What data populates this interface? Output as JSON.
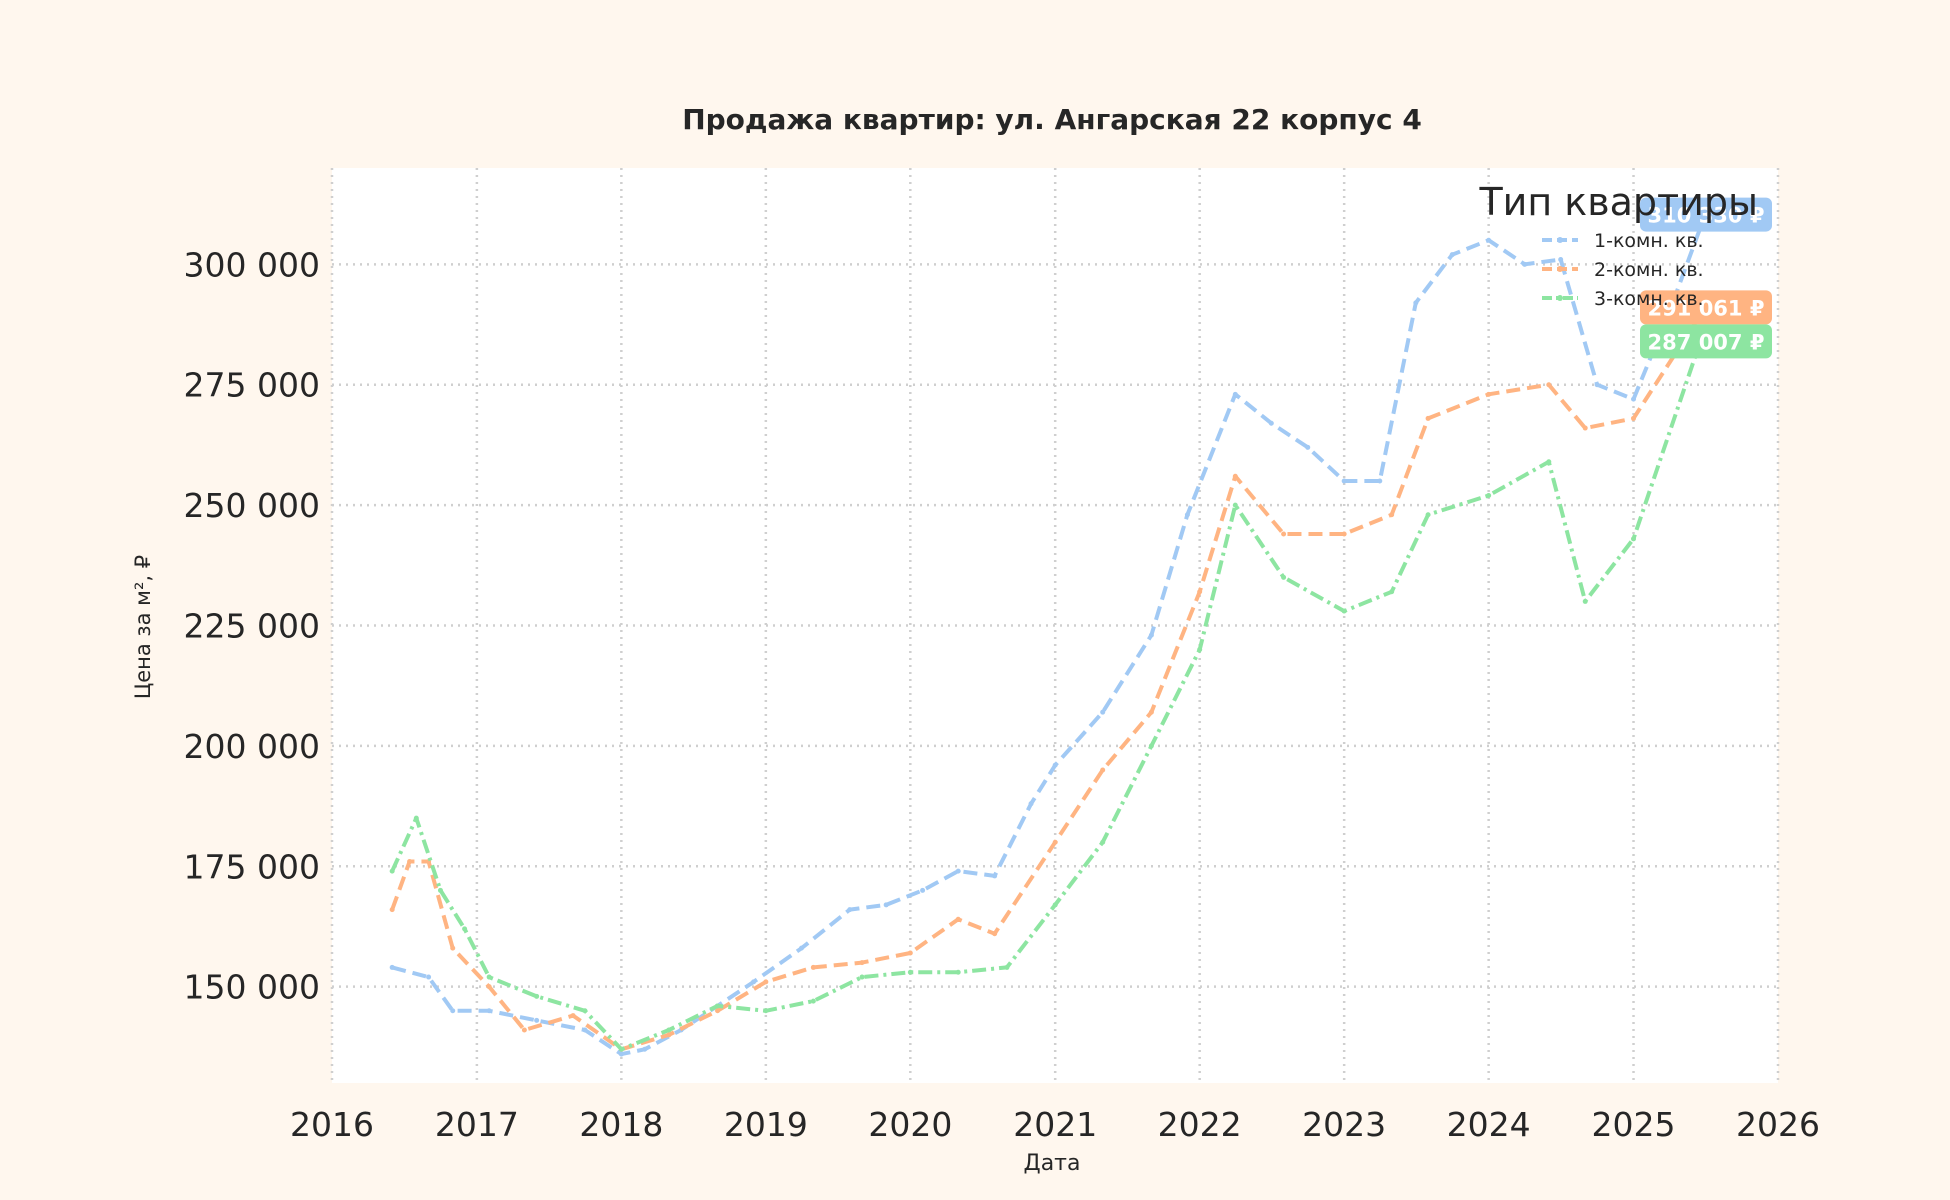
{
  "chart_data": {
    "type": "line",
    "title": "Продажа квартир: ул. Ангарская 22 корпус 4",
    "xlabel": "Дата",
    "ylabel": "Цена за м², ₽",
    "xlim": [
      "2016-01-01",
      "2026-01-01"
    ],
    "ylim": [
      130000,
      320000
    ],
    "x_ticks": [
      "2016",
      "2017",
      "2018",
      "2019",
      "2020",
      "2021",
      "2022",
      "2023",
      "2024",
      "2025",
      "2026"
    ],
    "y_ticks": [
      150000,
      175000,
      200000,
      225000,
      250000,
      275000,
      300000
    ],
    "y_tick_labels": [
      "150 000",
      "175 000",
      "200 000",
      "225 000",
      "250 000",
      "275 000",
      "300 000"
    ],
    "grid": true,
    "legend": {
      "title": "Тип квартиры",
      "placement": "top-right"
    },
    "series": [
      {
        "name": "1-комн. кв.",
        "color": "#a1c9f4",
        "end_label": "310 330 ₽",
        "points": [
          [
            "2016-06-01",
            154000
          ],
          [
            "2016-09-01",
            152000
          ],
          [
            "2016-11-01",
            145000
          ],
          [
            "2017-02-01",
            145000
          ],
          [
            "2017-06-01",
            143000
          ],
          [
            "2017-10-01",
            141000
          ],
          [
            "2018-01-01",
            136000
          ],
          [
            "2018-03-01",
            137000
          ],
          [
            "2018-06-01",
            141000
          ],
          [
            "2018-09-01",
            146000
          ],
          [
            "2018-12-01",
            151000
          ],
          [
            "2019-04-01",
            158000
          ],
          [
            "2019-08-01",
            166000
          ],
          [
            "2019-11-01",
            167000
          ],
          [
            "2020-02-01",
            170000
          ],
          [
            "2020-05-01",
            174000
          ],
          [
            "2020-08-01",
            173000
          ],
          [
            "2020-11-01",
            188000
          ],
          [
            "2021-01-01",
            196000
          ],
          [
            "2021-05-01",
            207000
          ],
          [
            "2021-09-01",
            223000
          ],
          [
            "2021-12-01",
            248000
          ],
          [
            "2022-04-01",
            273000
          ],
          [
            "2022-07-01",
            267000
          ],
          [
            "2022-10-01",
            262000
          ],
          [
            "2023-01-01",
            255000
          ],
          [
            "2023-04-01",
            255000
          ],
          [
            "2023-07-01",
            292000
          ],
          [
            "2023-10-01",
            302000
          ],
          [
            "2024-01-01",
            305000
          ],
          [
            "2024-04-01",
            300000
          ],
          [
            "2024-07-01",
            301000
          ],
          [
            "2024-10-01",
            275000
          ],
          [
            "2025-01-01",
            272000
          ],
          [
            "2025-04-01",
            290000
          ],
          [
            "2025-07-01",
            310330
          ]
        ]
      },
      {
        "name": "2-комн. кв.",
        "color": "#ffb482",
        "end_label": "291 061 ₽",
        "points": [
          [
            "2016-06-01",
            166000
          ],
          [
            "2016-07-15",
            176000
          ],
          [
            "2016-09-01",
            176000
          ],
          [
            "2016-11-01",
            158000
          ],
          [
            "2017-02-01",
            150000
          ],
          [
            "2017-05-01",
            141000
          ],
          [
            "2017-09-01",
            144000
          ],
          [
            "2018-01-01",
            137000
          ],
          [
            "2018-05-01",
            140000
          ],
          [
            "2018-09-01",
            145000
          ],
          [
            "2019-01-01",
            151000
          ],
          [
            "2019-05-01",
            154000
          ],
          [
            "2019-09-01",
            155000
          ],
          [
            "2020-01-01",
            157000
          ],
          [
            "2020-05-01",
            164000
          ],
          [
            "2020-08-01",
            161000
          ],
          [
            "2021-01-01",
            180000
          ],
          [
            "2021-05-01",
            195000
          ],
          [
            "2021-09-01",
            207000
          ],
          [
            "2022-01-01",
            232000
          ],
          [
            "2022-04-01",
            256000
          ],
          [
            "2022-08-01",
            244000
          ],
          [
            "2023-01-01",
            244000
          ],
          [
            "2023-05-01",
            248000
          ],
          [
            "2023-08-01",
            268000
          ],
          [
            "2024-01-01",
            273000
          ],
          [
            "2024-06-01",
            275000
          ],
          [
            "2024-09-01",
            266000
          ],
          [
            "2025-01-01",
            268000
          ],
          [
            "2025-07-01",
            291061
          ]
        ]
      },
      {
        "name": "3-комн. кв.",
        "color": "#8de5a1",
        "end_label": "287 007 ₽",
        "points": [
          [
            "2016-06-01",
            174000
          ],
          [
            "2016-08-01",
            185000
          ],
          [
            "2016-10-01",
            170000
          ],
          [
            "2016-12-01",
            162000
          ],
          [
            "2017-02-01",
            152000
          ],
          [
            "2017-06-01",
            148000
          ],
          [
            "2017-10-01",
            145000
          ],
          [
            "2018-01-01",
            137000
          ],
          [
            "2018-05-01",
            141000
          ],
          [
            "2018-09-01",
            146000
          ],
          [
            "2019-01-01",
            145000
          ],
          [
            "2019-05-01",
            147000
          ],
          [
            "2019-09-01",
            152000
          ],
          [
            "2020-01-01",
            153000
          ],
          [
            "2020-05-01",
            153000
          ],
          [
            "2020-09-01",
            154000
          ],
          [
            "2021-01-01",
            167000
          ],
          [
            "2021-05-01",
            180000
          ],
          [
            "2021-09-01",
            200000
          ],
          [
            "2022-01-01",
            220000
          ],
          [
            "2022-04-01",
            250000
          ],
          [
            "2022-08-01",
            235000
          ],
          [
            "2023-01-01",
            228000
          ],
          [
            "2023-05-01",
            232000
          ],
          [
            "2023-08-01",
            248000
          ],
          [
            "2024-01-01",
            252000
          ],
          [
            "2024-06-01",
            259000
          ],
          [
            "2024-09-01",
            230000
          ],
          [
            "2025-01-01",
            243000
          ],
          [
            "2025-07-01",
            287007
          ]
        ]
      }
    ]
  }
}
